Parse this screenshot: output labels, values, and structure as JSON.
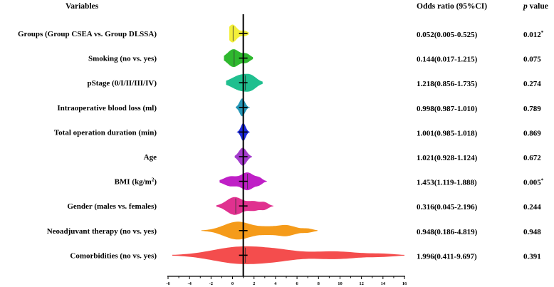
{
  "chart_data": {
    "type": "violin-forest",
    "headers": {
      "variables": "Variables",
      "or": "Odds ratio (95%CI)",
      "p_italic": "p",
      "p_rest": " value"
    },
    "reference_line": 1,
    "xlim": [
      -6,
      16
    ],
    "xticks": [
      "-6",
      "-4",
      "-2",
      "0",
      "2",
      "4",
      "6",
      "8",
      "10",
      "12",
      "14",
      "16"
    ],
    "rows": [
      {
        "variable": "Groups (Group CSEA vs. Group DLSSA)",
        "or": 0.052,
        "ci": [
          0.005,
          0.525
        ],
        "or_text": "0.052(0.005-0.525)",
        "p": "0.012",
        "sig": "*",
        "color": "#f3ef3a",
        "median": 0.05,
        "bumps": [
          [
            0.0,
            0.4,
            1.0
          ],
          [
            1.1,
            0.3,
            0.3
          ]
        ],
        "min": -0.3,
        "max": 1.5
      },
      {
        "variable": "Smoking (no vs. yes)",
        "or": 0.144,
        "ci": [
          0.017,
          1.215
        ],
        "or_text": "0.144(0.017-1.215)",
        "p": "0.075",
        "sig": "",
        "color": "#2eb82e",
        "median": 0.15,
        "bumps": [
          [
            0.1,
            0.55,
            1.0
          ],
          [
            1.3,
            0.35,
            0.45
          ]
        ],
        "min": -0.8,
        "max": 1.9
      },
      {
        "variable": "pStage (0/I/II/III/IV)",
        "or": 1.218,
        "ci": [
          0.856,
          1.735
        ],
        "or_text": "1.218(0.856-1.735)",
        "p": "0.274",
        "sig": "",
        "color": "#1fbf8f",
        "median": 1.2,
        "bumps": [
          [
            0.9,
            0.9,
            1.0
          ],
          [
            1.8,
            0.45,
            0.35
          ]
        ],
        "min": -0.6,
        "max": 2.8
      },
      {
        "variable": "Intraoperative blood loss (ml)",
        "or": 0.998,
        "ci": [
          0.987,
          1.01
        ],
        "or_text": "0.998(0.987-1.010)",
        "p": "0.789",
        "sig": "",
        "color": "#2596b6",
        "median": 1.0,
        "bumps": [
          [
            0.9,
            0.25,
            1.0
          ]
        ],
        "min": 0.3,
        "max": 1.6
      },
      {
        "variable": "Total operation duration (min)",
        "or": 1.001,
        "ci": [
          0.985,
          1.018
        ],
        "or_text": "1.001(0.985-1.018)",
        "p": "0.869",
        "sig": "",
        "color": "#1f2be0",
        "median": 1.0,
        "bumps": [
          [
            1.0,
            0.22,
            1.0
          ]
        ],
        "min": 0.4,
        "max": 1.6
      },
      {
        "variable": "Age",
        "or": 1.021,
        "ci": [
          0.928,
          1.124
        ],
        "or_text": "1.021(0.928-1.124)",
        "p": "0.672",
        "sig": "",
        "color": "#a43ccc",
        "median": 1.0,
        "bumps": [
          [
            0.95,
            0.35,
            1.0
          ]
        ],
        "min": 0.2,
        "max": 1.8
      },
      {
        "variable": "BMI (kg/m",
        "sup": "2",
        "var_tail": ")",
        "or": 1.453,
        "ci": [
          1.119,
          1.888
        ],
        "or_text": "1.453(1.119-1.888)",
        "p": "0.005",
        "sig": "*",
        "color": "#bf1fc6",
        "median": 1.4,
        "bumps": [
          [
            -0.2,
            0.6,
            0.55
          ],
          [
            1.4,
            0.6,
            1.0
          ],
          [
            2.5,
            0.3,
            0.3
          ]
        ],
        "min": -1.2,
        "max": 3.2
      },
      {
        "variable": "Gender (males vs. females)",
        "or": 0.316,
        "ci": [
          0.045,
          2.196
        ],
        "or_text": "0.316(0.045-2.196)",
        "p": "0.244",
        "sig": "",
        "color": "#e0318f",
        "median": 0.3,
        "bumps": [
          [
            0.2,
            0.75,
            1.0
          ],
          [
            2.0,
            0.55,
            0.5
          ],
          [
            3.0,
            0.35,
            0.35
          ]
        ],
        "min": -1.5,
        "max": 3.8
      },
      {
        "variable": "Neoadjuvant therapy (no vs. yes)",
        "or": 0.948,
        "ci": [
          0.186,
          4.819
        ],
        "or_text": "0.948(0.186-4.819)",
        "p": "0.948",
        "sig": "",
        "color": "#f59b1a",
        "median": 1.0,
        "bumps": [
          [
            0.5,
            1.3,
            1.0
          ],
          [
            3.2,
            0.8,
            0.3
          ],
          [
            5.0,
            0.9,
            0.6
          ],
          [
            7.0,
            0.5,
            0.2
          ]
        ],
        "min": -2.9,
        "max": 7.9
      },
      {
        "variable": "Comorbidities (no vs. yes)",
        "or": 1.996,
        "ci": [
          0.411,
          9.697
        ],
        "or_text": "1.996(0.411-9.697)",
        "p": "0.391",
        "sig": "",
        "color": "#f44d4d",
        "median": 1.2,
        "bumps": [
          [
            0.8,
            2.6,
            1.0
          ],
          [
            4.5,
            1.8,
            0.35
          ],
          [
            9.5,
            2.2,
            0.45
          ],
          [
            14.0,
            1.2,
            0.15
          ]
        ],
        "min": -5.6,
        "max": 16.0
      }
    ]
  }
}
